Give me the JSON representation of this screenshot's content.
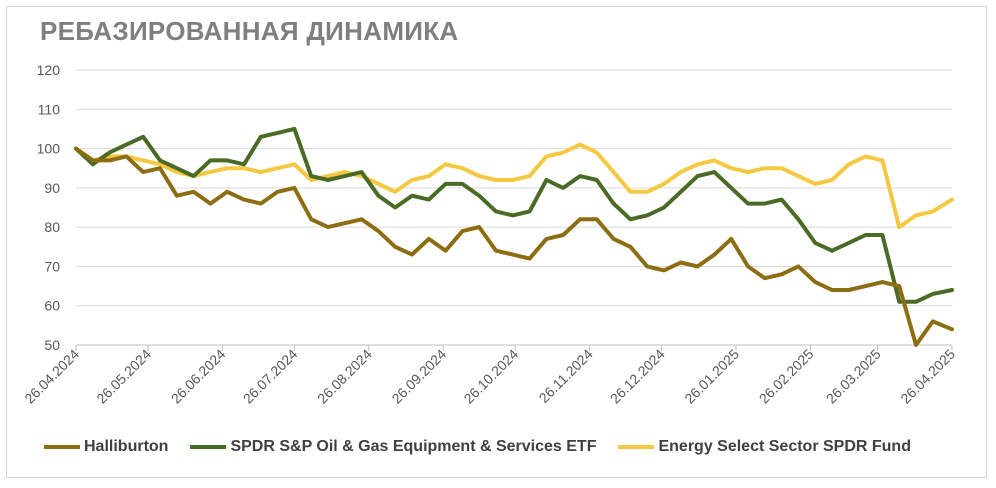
{
  "chart_data": {
    "type": "line",
    "title": "РЕБАЗИРОВАННАЯ ДИНАМИКА",
    "xlabel": "",
    "ylabel": "",
    "ylim": [
      50,
      120
    ],
    "yticks": [
      "50",
      "60",
      "70",
      "80",
      "90",
      "100",
      "110",
      "120"
    ],
    "x_tick_labels": [
      "26.04.2024",
      "26.05.2024",
      "26.06.2024",
      "26.07.2024",
      "26.08.2024",
      "26.09.2024",
      "26.10.2024",
      "26.11.2024",
      "26.12.2024",
      "26.01.2025",
      "26.02.2025",
      "26.03.2025",
      "26.04.2025"
    ],
    "grid": "horizontal",
    "legend_position": "bottom",
    "x": [
      "2024-04-26",
      "2024-05-03",
      "2024-05-10",
      "2024-05-17",
      "2024-05-24",
      "2024-05-31",
      "2024-06-07",
      "2024-06-14",
      "2024-06-21",
      "2024-06-28",
      "2024-07-05",
      "2024-07-12",
      "2024-07-19",
      "2024-07-26",
      "2024-08-02",
      "2024-08-09",
      "2024-08-16",
      "2024-08-23",
      "2024-08-30",
      "2024-09-06",
      "2024-09-13",
      "2024-09-20",
      "2024-09-27",
      "2024-10-04",
      "2024-10-11",
      "2024-10-18",
      "2024-10-25",
      "2024-11-01",
      "2024-11-08",
      "2024-11-15",
      "2024-11-22",
      "2024-11-29",
      "2024-12-06",
      "2024-12-13",
      "2024-12-20",
      "2024-12-27",
      "2025-01-03",
      "2025-01-10",
      "2025-01-17",
      "2025-01-24",
      "2025-01-31",
      "2025-02-07",
      "2025-02-14",
      "2025-02-21",
      "2025-02-28",
      "2025-03-07",
      "2025-03-14",
      "2025-03-21",
      "2025-03-28",
      "2025-04-04",
      "2025-04-11",
      "2025-04-18",
      "2025-04-26"
    ],
    "series": [
      {
        "name": "Halliburton",
        "color": "#8c6d12",
        "values": [
          100,
          97,
          97,
          98,
          94,
          95,
          88,
          89,
          86,
          89,
          87,
          86,
          89,
          90,
          82,
          80,
          81,
          82,
          79,
          75,
          73,
          77,
          74,
          79,
          80,
          74,
          73,
          72,
          77,
          78,
          82,
          82,
          77,
          75,
          70,
          69,
          71,
          70,
          73,
          77,
          70,
          67,
          68,
          70,
          66,
          64,
          64,
          65,
          66,
          65,
          50,
          56,
          54
        ]
      },
      {
        "name": "SPDR S&P Oil & Gas Equipment & Services ETF",
        "color": "#4a6b25",
        "values": [
          100,
          96,
          99,
          101,
          103,
          97,
          95,
          93,
          97,
          97,
          96,
          103,
          104,
          105,
          93,
          92,
          93,
          94,
          88,
          85,
          88,
          87,
          91,
          91,
          88,
          84,
          83,
          84,
          92,
          90,
          93,
          92,
          86,
          82,
          83,
          85,
          89,
          93,
          94,
          90,
          86,
          86,
          87,
          82,
          76,
          74,
          76,
          78,
          78,
          61,
          61,
          63,
          64
        ]
      },
      {
        "name": "Energy Select Sector SPDR Fund",
        "color": "#f5c842",
        "values": [
          100,
          97,
          98,
          98,
          97,
          96,
          94,
          93,
          94,
          95,
          95,
          94,
          95,
          96,
          92,
          93,
          94,
          93,
          91,
          89,
          92,
          93,
          96,
          95,
          93,
          92,
          92,
          93,
          98,
          99,
          101,
          99,
          94,
          89,
          89,
          91,
          94,
          96,
          97,
          95,
          94,
          95,
          95,
          93,
          91,
          92,
          96,
          98,
          97,
          80,
          83,
          84,
          87
        ]
      }
    ]
  }
}
